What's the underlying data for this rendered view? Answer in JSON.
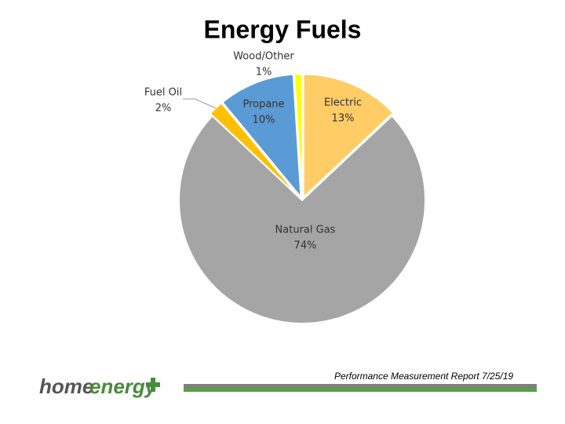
{
  "chart_data": {
    "type": "pie",
    "title": "Energy Fuels",
    "categories": [
      "Electric",
      "Natural Gas",
      "Fuel Oil",
      "Propane",
      "Wood/Other"
    ],
    "values": [
      13,
      74,
      2,
      10,
      1
    ],
    "value_labels": [
      "13%",
      "74%",
      "2%",
      "10%",
      "1%"
    ],
    "colors": [
      "#ffcc66",
      "#a5a5a5",
      "#ffc000",
      "#5b9bd5",
      "#ffff00"
    ]
  },
  "footer": {
    "report": "Performance Measurement Report 7/25/19",
    "logo_home": "home",
    "logo_energy": "energy"
  }
}
